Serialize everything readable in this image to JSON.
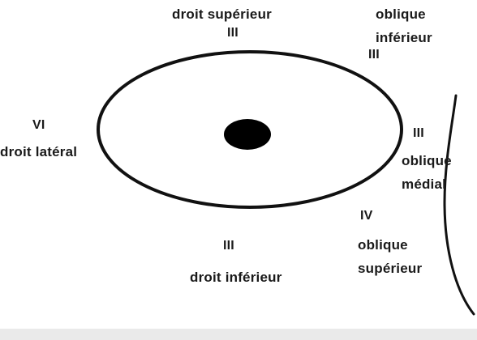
{
  "labels": {
    "top": {
      "muscle": "droit supérieur",
      "nerve": "III"
    },
    "top_right": {
      "muscle_line1": "oblique",
      "muscle_line2": "inférieur",
      "nerve": "III"
    },
    "left": {
      "nerve": "VI",
      "muscle": "droit latéral"
    },
    "right": {
      "nerve": "III",
      "muscle_line1": "oblique",
      "muscle_line2": "médial"
    },
    "bottom_right": {
      "nerve": "IV",
      "muscle_line1": "oblique",
      "muscle_line2": "supérieur"
    },
    "bottom": {
      "nerve": "III",
      "muscle": "droit inférieur"
    }
  }
}
